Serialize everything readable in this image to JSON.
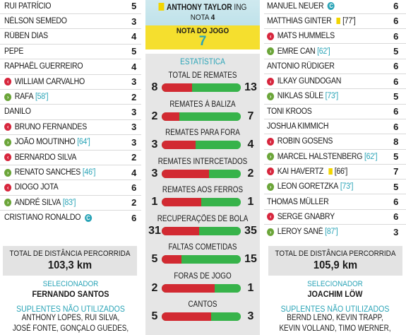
{
  "left": {
    "players": [
      {
        "name": "RUI PATRÍCIO",
        "grade": "5",
        "icon": "",
        "minute": "",
        "captain": false
      },
      {
        "name": "NÉLSON SEMEDO",
        "grade": "3",
        "icon": "",
        "minute": "",
        "captain": false
      },
      {
        "name": "RÚBEN DIAS",
        "grade": "4",
        "icon": "",
        "minute": "",
        "captain": false
      },
      {
        "name": "PEPE",
        "grade": "5",
        "icon": "",
        "minute": "",
        "captain": false
      },
      {
        "name": "RAPHAËL GUERREIRO",
        "grade": "4",
        "icon": "",
        "minute": "",
        "captain": false
      },
      {
        "name": "WILLIAM CARVALHO",
        "grade": "3",
        "icon": "out",
        "minute": "",
        "captain": false
      },
      {
        "name": "RAFA",
        "grade": "2",
        "icon": "in",
        "minute": "[58']",
        "captain": false
      },
      {
        "name": "DANILO",
        "grade": "3",
        "icon": "",
        "minute": "",
        "captain": false
      },
      {
        "name": "BRUNO FERNANDES",
        "grade": "3",
        "icon": "out",
        "minute": "",
        "captain": false
      },
      {
        "name": "JOÃO MOUTINHO",
        "grade": "3",
        "icon": "in",
        "minute": "[64']",
        "captain": false
      },
      {
        "name": "BERNARDO SILVA",
        "grade": "2",
        "icon": "out",
        "minute": "",
        "captain": false
      },
      {
        "name": "RENATO SANCHES",
        "grade": "4",
        "icon": "in",
        "minute": "[46']",
        "captain": false
      },
      {
        "name": "DIOGO JOTA",
        "grade": "6",
        "icon": "out",
        "minute": "",
        "captain": false
      },
      {
        "name": "ANDRÉ SILVA",
        "grade": "2",
        "icon": "in",
        "minute": "[83']",
        "captain": false
      },
      {
        "name": "CRISTIANO RONALDO",
        "grade": "6",
        "icon": "",
        "minute": "",
        "captain": true
      }
    ],
    "distance_label": "TOTAL DE DISTÂNCIA PERCORRIDA",
    "distance_value": "103,3 km",
    "coach_label": "SELECIONADOR",
    "coach_name": "FERNANDO SANTOS",
    "subs_label": "SUPLENTES NÃO UTILIZADOS",
    "subs_lines": [
      "ANTHONY LOPES, RUI SILVA,",
      "JOSÉ FONTE, GONÇALO GUEDES,"
    ]
  },
  "right": {
    "players": [
      {
        "name": "MANUEL NEUER",
        "grade": "6",
        "icon": "",
        "minute": "",
        "captain": true,
        "card": ""
      },
      {
        "name": "MATTHIAS GINTER",
        "grade": "6",
        "icon": "",
        "minute": "",
        "captain": false,
        "card": "[77']"
      },
      {
        "name": "MATS HUMMELS",
        "grade": "6",
        "icon": "out",
        "minute": "",
        "captain": false,
        "card": ""
      },
      {
        "name": "EMRE CAN",
        "grade": "5",
        "icon": "in",
        "minute": "[62']",
        "captain": false,
        "card": ""
      },
      {
        "name": "ANTONIO RÜDIGER",
        "grade": "6",
        "icon": "",
        "minute": "",
        "captain": false,
        "card": ""
      },
      {
        "name": "ILKAY GUNDOGAN",
        "grade": "6",
        "icon": "out",
        "minute": "",
        "captain": false,
        "card": ""
      },
      {
        "name": "NIKLAS SÜLE",
        "grade": "5",
        "icon": "in",
        "minute": "[73']",
        "captain": false,
        "card": ""
      },
      {
        "name": "TONI KROOS",
        "grade": "6",
        "icon": "",
        "minute": "",
        "captain": false,
        "card": ""
      },
      {
        "name": "JOSHUA KIMMICH",
        "grade": "6",
        "icon": "",
        "minute": "",
        "captain": false,
        "card": ""
      },
      {
        "name": "ROBIN GOSENS",
        "grade": "8",
        "icon": "out",
        "minute": "",
        "captain": false,
        "card": ""
      },
      {
        "name": "MARCEL HALSTENBERG",
        "grade": "5",
        "icon": "in",
        "minute": "[62']",
        "captain": false,
        "card": ""
      },
      {
        "name": "KAI HAVERTZ",
        "grade": "7",
        "icon": "out",
        "minute": "",
        "captain": false,
        "card": "[66']"
      },
      {
        "name": "LEON GORETZKA",
        "grade": "5",
        "icon": "in",
        "minute": "[73']",
        "captain": false,
        "card": ""
      },
      {
        "name": "THOMAS MÜLLER",
        "grade": "6",
        "icon": "",
        "minute": "",
        "captain": false,
        "card": ""
      },
      {
        "name": "SERGE GNABRY",
        "grade": "6",
        "icon": "out",
        "minute": "",
        "captain": false,
        "card": ""
      },
      {
        "name": "LEROY SANÉ",
        "grade": "3",
        "icon": "in",
        "minute": "[87']",
        "captain": false,
        "card": ""
      }
    ],
    "distance_label": "TOTAL DE DISTÂNCIA PERCORRIDA",
    "distance_value": "105,9 km",
    "coach_label": "SELECIONADOR",
    "coach_name": "JOACHIM LÖW",
    "subs_label": "SUPLENTES NÃO UTILIZADOS",
    "subs_lines": [
      "BERND LENO, KEVIN TRAPP,",
      "KEVIN VOLLAND, TIMO WERNER,"
    ]
  },
  "referee": {
    "name": "ANTHONY TAYLOR",
    "nationality": "ING",
    "grade_label": "NOTA",
    "grade_value": "4",
    "game_label": "NOTA DO JOGO",
    "game_value": "7"
  },
  "stats": {
    "title": "ESTATÍSTICA",
    "items": [
      {
        "label": "TOTAL DE REMATES",
        "home": 8,
        "away": 13
      },
      {
        "label": "REMATES À BALIZA",
        "home": 2,
        "away": 7
      },
      {
        "label": "REMATES PARA FORA",
        "home": 3,
        "away": 4
      },
      {
        "label": "REMATES INTERCETADOS",
        "home": 3,
        "away": 2
      },
      {
        "label": "REMATES AOS FERROS",
        "home": 1,
        "away": 1
      },
      {
        "label": "RECUPERAÇÕES DE BOLA",
        "home": 31,
        "away": 35
      },
      {
        "label": "FALTAS COMETIDAS",
        "home": 5,
        "away": 15
      },
      {
        "label": "FORAS DE JOGO",
        "home": 2,
        "away": 1
      },
      {
        "label": "CANTOS",
        "home": 5,
        "away": 3
      }
    ]
  },
  "colors": {
    "home_bar": "#d22a32",
    "away_bar": "#37b34a",
    "accent": "#2aa4b7",
    "referee_box": "#f5df2e"
  }
}
